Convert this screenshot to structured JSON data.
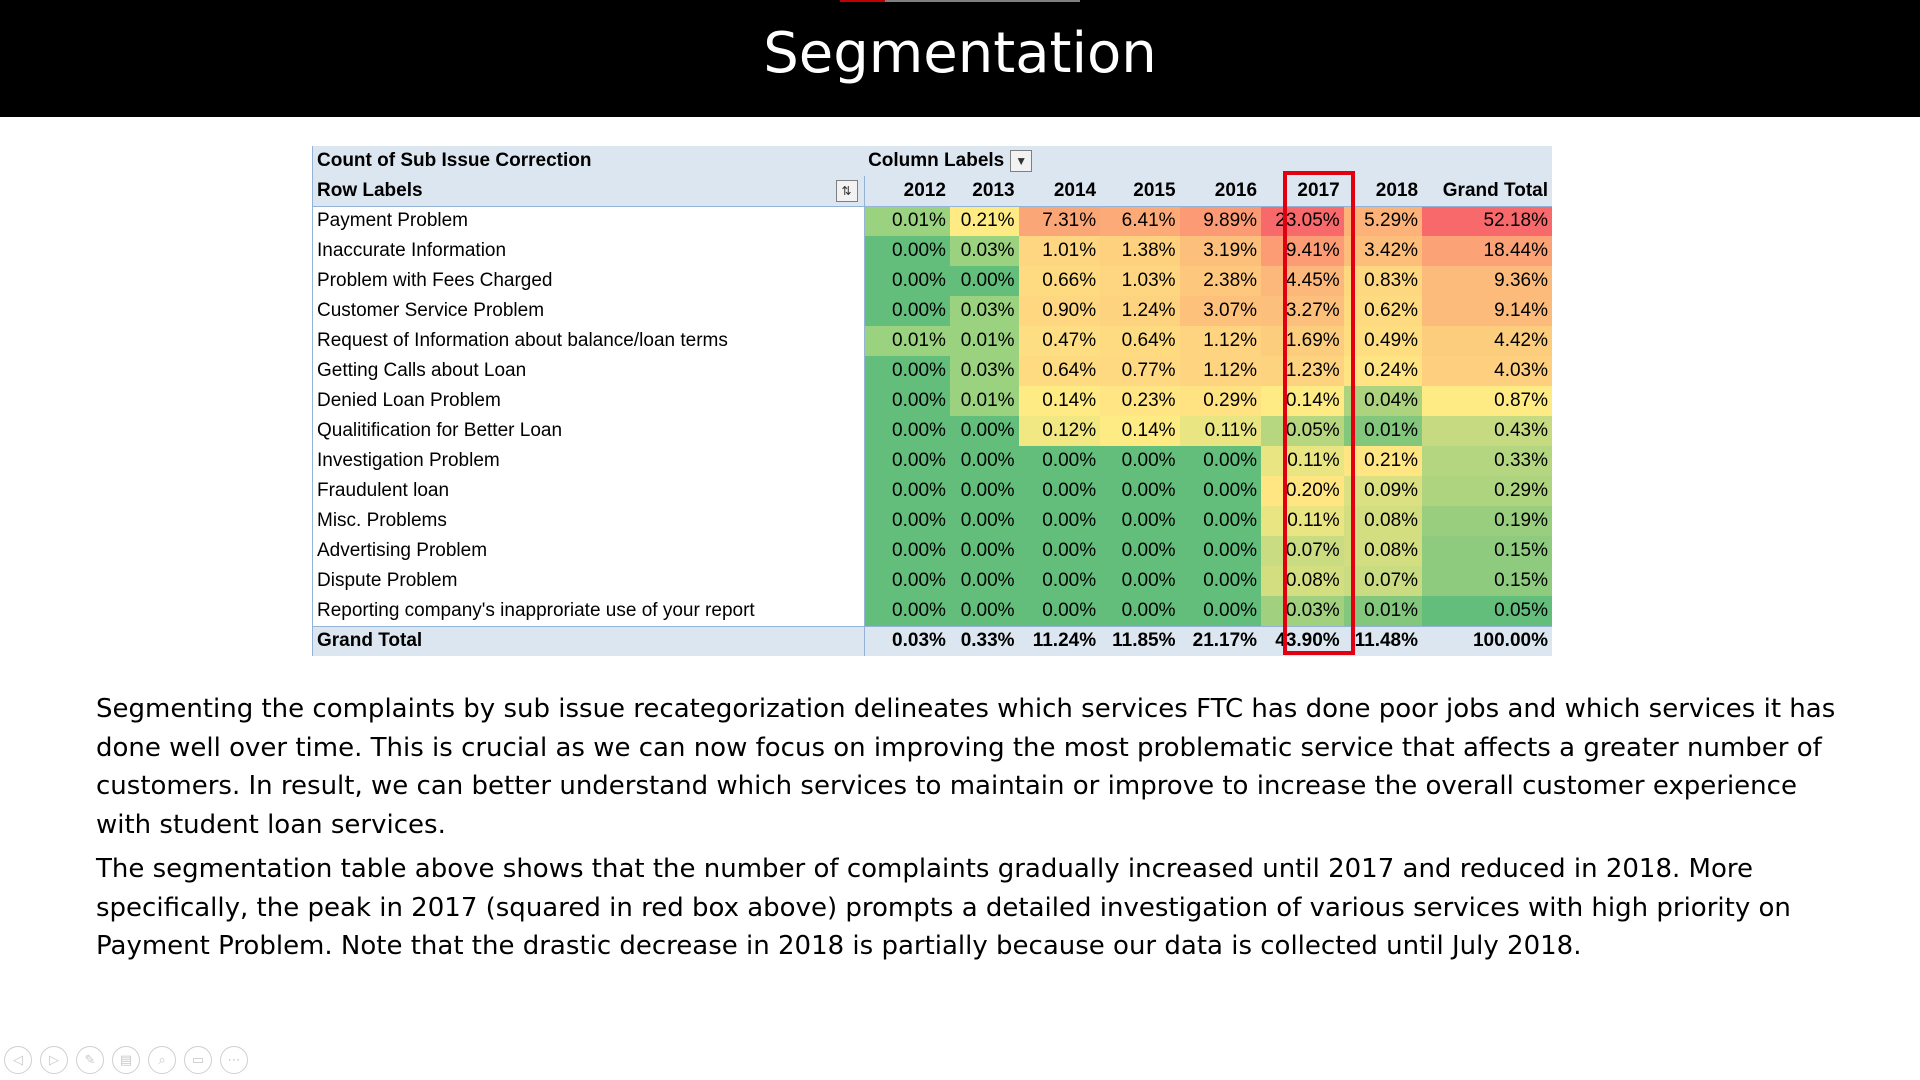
{
  "slide": {
    "title": "Segmentation"
  },
  "pivot": {
    "value_field": "Count of Sub Issue Correction",
    "column_labels": "Column Labels",
    "row_labels": "Row Labels",
    "years": [
      "2012",
      "2013",
      "2014",
      "2015",
      "2016",
      "2017",
      "2018"
    ],
    "grand_total_label": "Grand Total",
    "highlighted_column": "2017",
    "rows": [
      {
        "label": "Payment Problem",
        "values": [
          "0.01%",
          "0.21%",
          "7.31%",
          "6.41%",
          "9.89%",
          "23.05%",
          "5.29%"
        ],
        "total": "52.18%"
      },
      {
        "label": "Inaccurate Information",
        "values": [
          "0.00%",
          "0.03%",
          "1.01%",
          "1.38%",
          "3.19%",
          "9.41%",
          "3.42%"
        ],
        "total": "18.44%"
      },
      {
        "label": "Problem with Fees Charged",
        "values": [
          "0.00%",
          "0.00%",
          "0.66%",
          "1.03%",
          "2.38%",
          "4.45%",
          "0.83%"
        ],
        "total": "9.36%"
      },
      {
        "label": "Customer Service Problem",
        "values": [
          "0.00%",
          "0.03%",
          "0.90%",
          "1.24%",
          "3.07%",
          "3.27%",
          "0.62%"
        ],
        "total": "9.14%"
      },
      {
        "label": "Request of Information about balance/loan terms",
        "values": [
          "0.01%",
          "0.01%",
          "0.47%",
          "0.64%",
          "1.12%",
          "1.69%",
          "0.49%"
        ],
        "total": "4.42%"
      },
      {
        "label": "Getting Calls about Loan",
        "values": [
          "0.00%",
          "0.03%",
          "0.64%",
          "0.77%",
          "1.12%",
          "1.23%",
          "0.24%"
        ],
        "total": "4.03%"
      },
      {
        "label": "Denied Loan Problem",
        "values": [
          "0.00%",
          "0.01%",
          "0.14%",
          "0.23%",
          "0.29%",
          "0.14%",
          "0.04%"
        ],
        "total": "0.87%"
      },
      {
        "label": "Qualitification for Better Loan",
        "values": [
          "0.00%",
          "0.00%",
          "0.12%",
          "0.14%",
          "0.11%",
          "0.05%",
          "0.01%"
        ],
        "total": "0.43%"
      },
      {
        "label": "Investigation Problem",
        "values": [
          "0.00%",
          "0.00%",
          "0.00%",
          "0.00%",
          "0.00%",
          "0.11%",
          "0.21%"
        ],
        "total": "0.33%"
      },
      {
        "label": "Fraudulent loan",
        "values": [
          "0.00%",
          "0.00%",
          "0.00%",
          "0.00%",
          "0.00%",
          "0.20%",
          "0.09%"
        ],
        "total": "0.29%"
      },
      {
        "label": "Misc. Problems",
        "values": [
          "0.00%",
          "0.00%",
          "0.00%",
          "0.00%",
          "0.00%",
          "0.11%",
          "0.08%"
        ],
        "total": "0.19%"
      },
      {
        "label": "Advertising Problem",
        "values": [
          "0.00%",
          "0.00%",
          "0.00%",
          "0.00%",
          "0.00%",
          "0.07%",
          "0.08%"
        ],
        "total": "0.15%"
      },
      {
        "label": "Dispute Problem",
        "values": [
          "0.00%",
          "0.00%",
          "0.00%",
          "0.00%",
          "0.00%",
          "0.08%",
          "0.07%"
        ],
        "total": "0.15%"
      },
      {
        "label": "Reporting company's inapproriate use of your report",
        "values": [
          "0.00%",
          "0.00%",
          "0.00%",
          "0.00%",
          "0.00%",
          "0.03%",
          "0.01%"
        ],
        "total": "0.05%"
      }
    ],
    "totals": {
      "label": "Grand Total",
      "values": [
        "0.03%",
        "0.33%",
        "11.24%",
        "11.85%",
        "21.17%",
        "43.90%",
        "11.48%"
      ],
      "total": "100.00%"
    }
  },
  "description": {
    "paragraph_1": "Segmenting the complaints by sub issue recategorization delineates which services FTC has done poor jobs and which services it has done well over time. This is crucial as we can now focus on improving the most problematic service that affects a greater number of customers. In result, we can better understand which services to maintain or improve to increase the overall customer experience with student loan services.",
    "paragraph_2": "The segmentation table above shows that the number of complaints gradually increased until 2017 and reduced in 2018. More specifically, the peak in 2017 (squared in red box above) prompts a detailed investigation of various services with high priority on Payment Problem. Note that the drastic decrease in 2018 is partially because our data is collected until July 2018."
  },
  "colors": {
    "title_bar": "#000000",
    "pivot_header": "#dce6f1",
    "highlight_box": "#e0000f",
    "scale_low": "#63be7b",
    "scale_mid": "#ffeb84",
    "scale_high": "#f8696b"
  },
  "controls": {
    "icons": [
      "previous-icon",
      "next-icon",
      "pen-icon",
      "slides-icon",
      "zoom-icon",
      "subtitles-icon",
      "more-options-icon"
    ],
    "glyphs": [
      "◁",
      "▷",
      "✎",
      "▤",
      "⌕",
      "▭",
      "⋯"
    ]
  }
}
